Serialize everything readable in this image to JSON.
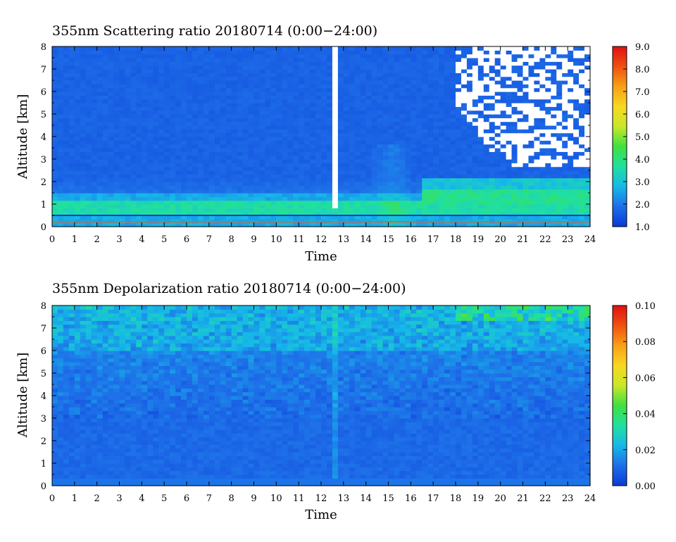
{
  "chart_data": [
    {
      "type": "heatmap",
      "title": "355nm Scattering ratio  20180714 (0:00−24:00)",
      "xlabel": "Time",
      "ylabel": "Altitude [km]",
      "xlim": [
        0,
        24
      ],
      "ylim": [
        0,
        8
      ],
      "x_ticks": [
        "0",
        "1",
        "2",
        "3",
        "4",
        "5",
        "6",
        "7",
        "8",
        "9",
        "10",
        "11",
        "12",
        "13",
        "14",
        "15",
        "16",
        "17",
        "18",
        "19",
        "20",
        "21",
        "22",
        "23",
        "24"
      ],
      "y_ticks": [
        "0",
        "1",
        "2",
        "3",
        "4",
        "5",
        "6",
        "7",
        "8"
      ],
      "colorbar": {
        "range": [
          1.0,
          9.0
        ],
        "tick_labels": [
          "1.0",
          "2.0",
          "3.0",
          "4.0",
          "5.0",
          "6.0",
          "7.0",
          "8.0",
          "9.0"
        ],
        "colors": [
          "#0a3ad8",
          "#1e6ee8",
          "#16b8e8",
          "#20e0a0",
          "#40e040",
          "#c8e828",
          "#f8d820",
          "#f8a018",
          "#f05010",
          "#e01010"
        ]
      },
      "features": {
        "background_value": 1.7,
        "boundary_layer_top_km": 1.5,
        "aerosol_layer_value": 3.6,
        "cloud_time_h": 12.6,
        "saturated_region_time_h": [
          18.0,
          24.0
        ],
        "saturated_region_alt_km": [
          2.7,
          8.0
        ]
      }
    },
    {
      "type": "heatmap",
      "title": "355nm Depolarization ratio  20180714 (0:00−24:00)",
      "xlabel": "Time",
      "ylabel": "Altitude [km]",
      "xlim": [
        0,
        24
      ],
      "ylim": [
        0,
        8
      ],
      "x_ticks": [
        "0",
        "1",
        "2",
        "3",
        "4",
        "5",
        "6",
        "7",
        "8",
        "9",
        "10",
        "11",
        "12",
        "13",
        "14",
        "15",
        "16",
        "17",
        "18",
        "19",
        "20",
        "21",
        "22",
        "23",
        "24"
      ],
      "y_ticks": [
        "0",
        "1",
        "2",
        "3",
        "4",
        "5",
        "6",
        "7",
        "8"
      ],
      "colorbar": {
        "range": [
          0.0,
          0.1
        ],
        "tick_labels": [
          "0.00",
          "0.02",
          "0.04",
          "0.06",
          "0.08",
          "0.10"
        ],
        "colors": [
          "#0a3ad8",
          "#1e6ee8",
          "#16b8e8",
          "#20e0a0",
          "#40e040",
          "#c8e828",
          "#f8d820",
          "#f8a018",
          "#f05010",
          "#e01010"
        ]
      },
      "features": {
        "background_value": 0.01,
        "noise_increase_above_km": 6.0
      }
    }
  ]
}
